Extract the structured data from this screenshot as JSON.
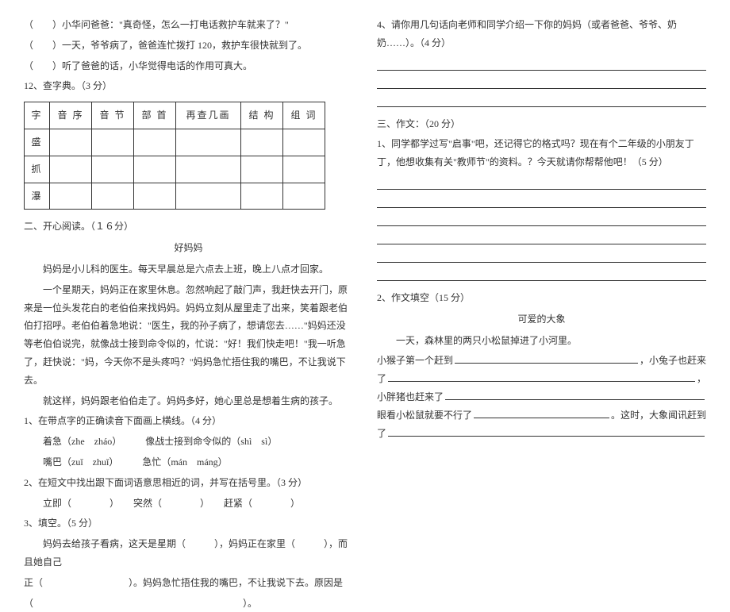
{
  "left": {
    "l1": "（　　）小华问爸爸：\"真奇怪，怎么一打电话救护车就来了？\"",
    "l2": "（　　）一天，爷爷病了，爸爸连忙拨打 120，救护车很快就到了。",
    "l3": "（　　）听了爸爸的话，小华觉得电话的作用可真大。",
    "q12": "12、查字典。（3 分）",
    "table": {
      "headers": [
        "字",
        "音 序",
        "音 节",
        "部 首",
        "再查几画",
        "结 构",
        "组 词"
      ],
      "rows": [
        "盛",
        "抓",
        "瀑"
      ]
    },
    "sec2": "二、开心阅读。（１６分）",
    "title": "好妈妈",
    "p1": "妈妈是小儿科的医生。每天早晨总是六点去上班，晚上八点才回家。",
    "p2": "一个星期天，妈妈正在家里休息。忽然响起了敲门声，我赶快去开门，原来是一位头发花白的老伯伯来找妈妈。妈妈立刻从屋里走了出来，笑着跟老伯伯打招呼。老伯伯着急地说：\"医生，我的孙子病了，想请您去……\"妈妈还没等老伯伯说完，就像战士接到命令似的，忙说：\"好！我们快走吧！\"我一听急了，赶快说：\"妈，今天你不是头疼吗？\"妈妈急忙捂住我的嘴巴，不让我说下去。",
    "p3": "就这样，妈妈跟老伯伯走了。妈妈多好，她心里总是想着生病的孩子。",
    "q1": "1、在带点字的正确读音下面画上横线。（4 分）",
    "q1a": "着急（zhe　zháo）　　　像战士接到命令似的（shì　sì）",
    "q1b": "嘴巴（zuǐ　zhuǐ）　　　急忙（mán　máng）",
    "q2": "2、在短文中找出跟下面词语意思相近的词，并写在括号里。（3 分）",
    "q2a": "立即（　　　　）　　突然（　　　　）　　赶紧（　　　　）",
    "q3": "3、填空。（5 分）",
    "q3a": "妈妈去给孩子看病，这天是星期（　　　），妈妈正在家里（　　　），而且她自己",
    "q3b": "正（　　　　　　　　　）。妈妈急忙捂住我的嘴巴，不让我说下去。原因是",
    "q3c": "（　　　　　　　　　　　　　　　　　　　　　　）。"
  },
  "right": {
    "q4": "4、请你用几句话向老师和同学介绍一下你的妈妈（或者爸爸、爷爷、奶奶……）。（4 分）",
    "sec3": "三、作文：（20 分）",
    "q1": "1、同学都学过写\"启事\"吧，还记得它的格式吗？现在有个二年级的小朋友丁丁，他想收集有关\"教师节\"的资料。？今天就请你帮帮他吧！（5 分）",
    "q2": "2、作文填空（15 分）",
    "title2": "可爱的大象",
    "s1": "一天，森林里的两只小松鼠掉进了小河里。",
    "s2a": "小猴子第一个赶到",
    "s2b": "，小兔子也赶来",
    "s3a": "了",
    "s3b": "，",
    "s4": "小胖猪也赶来了",
    "s5a": "眼看小松鼠就要不行了",
    "s5b": "。这时，大象闻讯赶到",
    "s6": "了"
  }
}
